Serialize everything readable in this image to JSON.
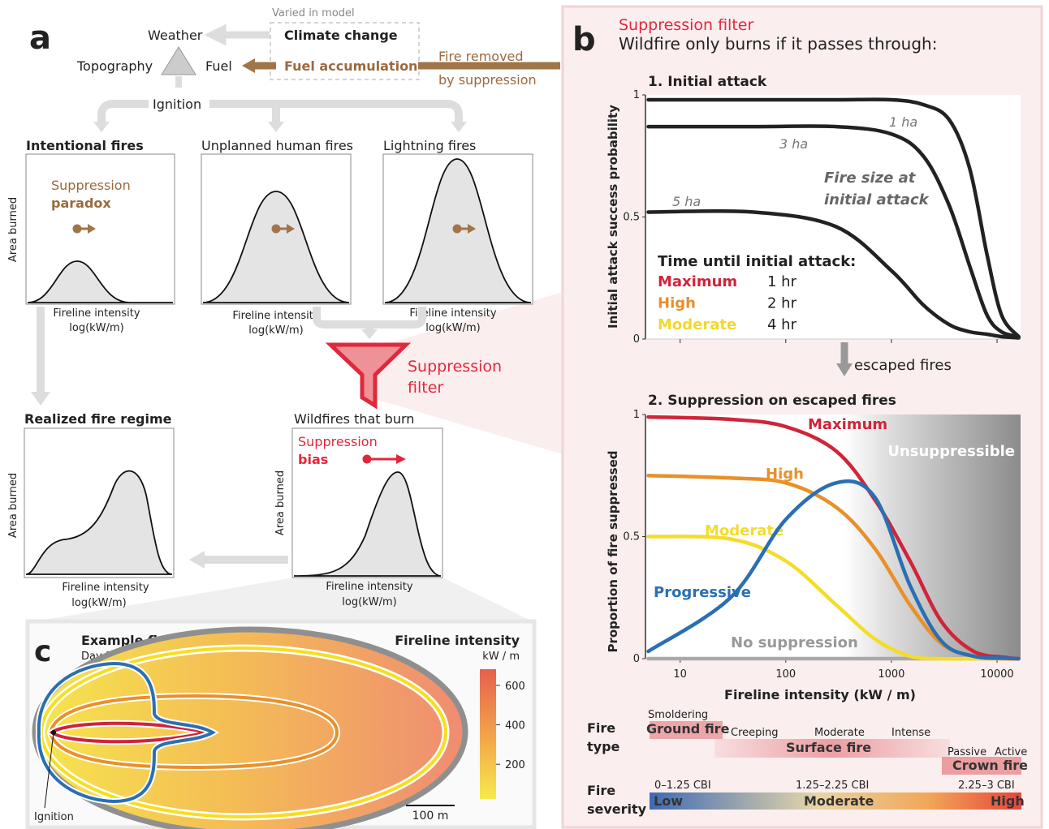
{
  "panel_a": {
    "label": "a",
    "varied_note": "Varied in model",
    "nodes": {
      "weather": "Weather",
      "climate": "Climate change",
      "topography": "Topography",
      "fuel": "Fuel",
      "fuel_accumulation": "Fuel accumulation",
      "ignition": "Ignition"
    },
    "fire_removed": [
      "Fire removed",
      "by suppression"
    ],
    "distributions": [
      {
        "title": "Intentional fires",
        "y_label": "Area burned",
        "x_label": [
          "Fireline intensity",
          "log(kW/m)"
        ],
        "annotation": [
          "Suppression",
          "paradox"
        ]
      },
      {
        "title": "Unplanned human fires",
        "x_label": [
          "Fireline intensity",
          "log(kW/m)"
        ]
      },
      {
        "title": "Lightning fires",
        "x_label": [
          "Fireline intensity",
          "log(kW/m)"
        ]
      },
      {
        "title": "Realized fire regime",
        "y_label": "Area burned",
        "x_label": [
          "Fireline intensity",
          "log(kW/m)"
        ]
      },
      {
        "title": "Wildfires that burn",
        "y_label": "Area burned",
        "x_label": [
          "Fireline intensity",
          "log(kW/m)"
        ],
        "annotation": [
          "Suppression",
          "bias"
        ]
      }
    ],
    "filter": [
      "Suppression",
      "filter"
    ]
  },
  "panel_b": {
    "label": "b",
    "title": "Suppression filter",
    "subtitle": "Wildfire only burns if it passes through:",
    "initial_attack": {
      "type": "line",
      "title": "1. Initial attack",
      "y_label": "Initial attack success probability",
      "log_x": true,
      "xlim": [
        4.7,
        16700
      ],
      "ylim": [
        0,
        1
      ],
      "xticks": [
        10,
        100,
        1000,
        10000
      ],
      "yticks": [
        1,
        0.5,
        0
      ],
      "x": [
        5,
        50,
        300,
        1000,
        2000,
        3500,
        5500,
        8000,
        11000,
        16000
      ],
      "series": [
        {
          "name": "1 ha",
          "color": "#222222",
          "values": [
            0.98,
            0.98,
            0.98,
            0.98,
            0.96,
            0.9,
            0.7,
            0.35,
            0.1,
            0.01
          ]
        },
        {
          "name": "3 ha",
          "color": "#222222",
          "values": [
            0.87,
            0.87,
            0.87,
            0.84,
            0.75,
            0.55,
            0.3,
            0.1,
            0.03,
            0.01
          ]
        },
        {
          "name": "5 ha",
          "color": "#222222",
          "values": [
            0.52,
            0.52,
            0.46,
            0.28,
            0.14,
            0.06,
            0.03,
            0.02,
            0.01,
            0.005
          ]
        }
      ],
      "annotation": [
        "Fire size at",
        "initial attack"
      ],
      "time_until": {
        "title": "Time until initial attack:",
        "rows": [
          {
            "label": "Maximum",
            "time": "1 hr",
            "color": "#d0243a"
          },
          {
            "label": "High",
            "time": "2 hr",
            "color": "#e8902a"
          },
          {
            "label": "Moderate",
            "time": "4 hr",
            "color": "#f2d82a"
          }
        ]
      }
    },
    "escaped_note": "escaped fires",
    "escaped": {
      "type": "line",
      "title": "2. Suppression on escaped fires",
      "x_label": "Fireline intensity (kW / m)",
      "y_label": "Proportion of fire suppressed",
      "log_x": true,
      "xlim": [
        4.7,
        16700
      ],
      "ylim": [
        0,
        1
      ],
      "xticks": [
        10,
        100,
        1000,
        10000
      ],
      "yticks": [
        1,
        0.5,
        0
      ],
      "x": [
        5,
        30,
        100,
        300,
        700,
        1500,
        3000,
        6000,
        12000,
        16000
      ],
      "series": [
        {
          "name": "No suppression",
          "color": "#a9a9a9",
          "values": [
            0,
            0,
            0,
            0,
            0,
            0,
            0,
            0,
            0,
            0
          ]
        },
        {
          "name": "Moderate",
          "color": "#f5dc2a",
          "values": [
            0.5,
            0.49,
            0.4,
            0.22,
            0.08,
            0.01,
            0,
            0,
            0,
            0
          ]
        },
        {
          "name": "High",
          "color": "#e8902a",
          "values": [
            0.75,
            0.74,
            0.72,
            0.62,
            0.45,
            0.22,
            0.06,
            0.01,
            0,
            0
          ]
        },
        {
          "name": "Maximum",
          "color": "#d0243a",
          "values": [
            0.99,
            0.98,
            0.95,
            0.85,
            0.65,
            0.4,
            0.15,
            0.03,
            0.005,
            0
          ]
        },
        {
          "name": "Progressive",
          "color": "#2a6fb3",
          "values": [
            0.03,
            0.25,
            0.57,
            0.72,
            0.66,
            0.3,
            0.07,
            0.01,
            0.002,
            0
          ]
        }
      ],
      "zone_label": "Unsuppressible"
    },
    "fire_type": {
      "label": [
        "Fire",
        "type"
      ],
      "classes": [
        {
          "name": "Ground fire",
          "sub": [
            "Smoldering"
          ]
        },
        {
          "name": "Surface fire",
          "sub": [
            "Creeping",
            "Moderate",
            "Intense"
          ]
        },
        {
          "name": "Crown fire",
          "sub": [
            "Passive",
            "Active"
          ]
        }
      ]
    },
    "fire_severity": {
      "label": [
        "Fire",
        "severity"
      ],
      "classes": [
        {
          "name": "Low",
          "range": "0–1.25 CBI"
        },
        {
          "name": "Moderate",
          "range": "1.25–2.25 CBI"
        },
        {
          "name": "High",
          "range": "2.25–3 CBI"
        }
      ]
    }
  },
  "panel_c": {
    "label": "c",
    "title": "Example fire",
    "day": "Day 1",
    "ignition": "Ignition",
    "scale": "100 m",
    "colorbar": {
      "title": "Fireline intensity",
      "unit": "kW / m",
      "lim": [
        24,
        682
      ],
      "ticks": [
        200,
        400,
        600
      ]
    }
  }
}
